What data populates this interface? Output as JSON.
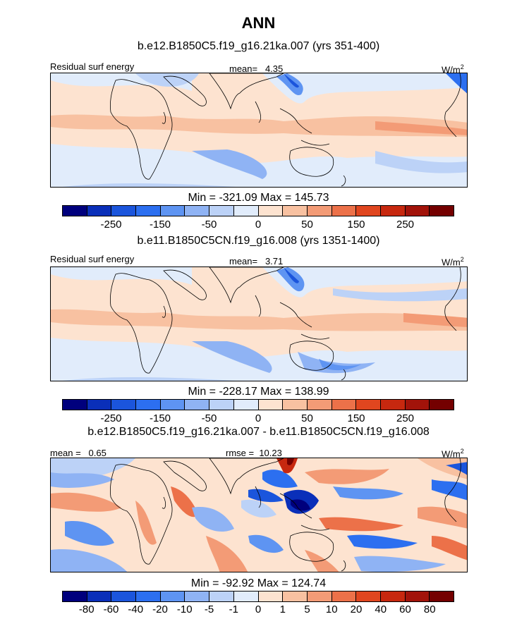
{
  "title": "ANN",
  "panels": [
    {
      "case_title": "b.e12.B1850C5.f19_g16.21ka.007 (yrs 351-400)",
      "left_label": "Residual surf energy",
      "center_label": "mean=   4.35",
      "units": "W/m",
      "units_sup": "2",
      "minmax": "Min = -321.09 Max = 145.73"
    },
    {
      "case_title": "b.e11.B1850C5CN.f19_g16.008 (yrs 1351-1400)",
      "left_label": "Residual surf energy",
      "center_label": "mean=   3.71",
      "units": "W/m",
      "units_sup": "2",
      "minmax": "Min = -228.17 Max = 138.99"
    },
    {
      "case_title": "b.e12.B1850C5.f19_g16.21ka.007 - b.e11.B1850C5CN.f19_g16.008",
      "left_label": "mean =   0.65",
      "center_label": "rmse =  10.23",
      "units": "W/m",
      "units_sup": "2",
      "minmax": "Min = -92.92 Max = 124.74"
    }
  ],
  "colorbar_abs": {
    "colors": [
      "#00007d",
      "#0a2fb9",
      "#1b55dc",
      "#2c6ff0",
      "#5e94f2",
      "#8fb3f4",
      "#bcd2f7",
      "#e1ecfb",
      "#fde3d0",
      "#f8c1a1",
      "#f39b76",
      "#ec7149",
      "#e0461f",
      "#c7280f",
      "#a2130a",
      "#740000"
    ],
    "ticks": [
      "-250",
      "-150",
      "-50",
      "0",
      "50",
      "150",
      "250"
    ]
  },
  "colorbar_diff": {
    "colors": [
      "#00007d",
      "#0a2fb9",
      "#1b55dc",
      "#2c6ff0",
      "#5e94f2",
      "#8fb3f4",
      "#bcd2f7",
      "#e1ecfb",
      "#fde3d0",
      "#f8c1a1",
      "#f39b76",
      "#ec7149",
      "#e0461f",
      "#c7280f",
      "#a2130a",
      "#740000"
    ],
    "ticks": [
      "-80",
      "-60",
      "-40",
      "-20",
      "-10",
      "-5",
      "-1",
      "0",
      "1",
      "5",
      "10",
      "20",
      "40",
      "60",
      "80"
    ]
  }
}
